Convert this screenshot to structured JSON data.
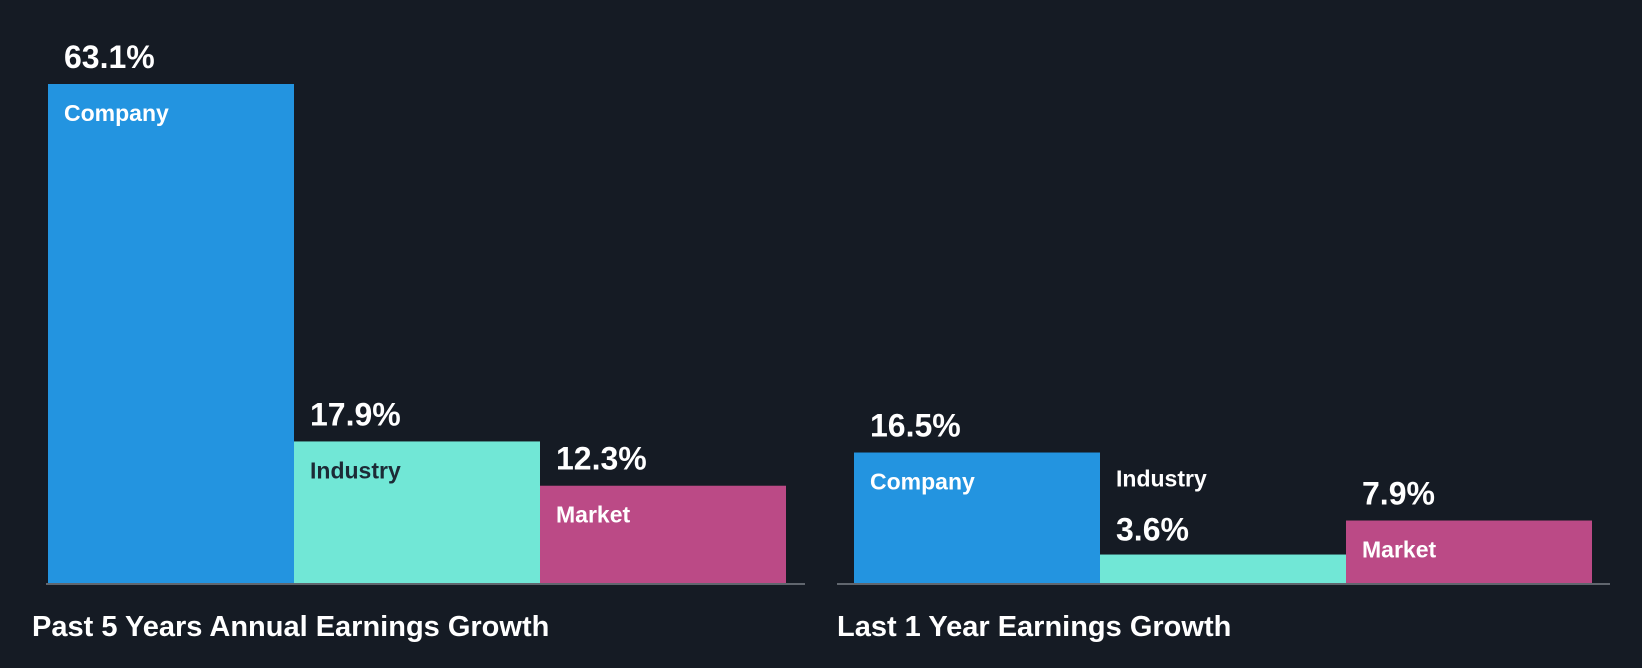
{
  "colors": {
    "background": "#151b24",
    "company": "#2394e0",
    "industry": "#71e7d6",
    "market": "#bb4a86",
    "axis": "#7a7f86",
    "label_on_dark_bar": "#ffffff",
    "label_on_light_bar": "#1c2a36"
  },
  "chart_data": [
    {
      "type": "bar",
      "title": "Past 5 Years Annual Earnings Growth",
      "categories": [
        "Company",
        "Industry",
        "Market"
      ],
      "values": [
        63.1,
        17.9,
        12.3
      ],
      "value_labels": [
        "63.1%",
        "17.9%",
        "12.3%"
      ],
      "ylim": [
        0,
        63.1
      ],
      "grid": false,
      "legend": "none"
    },
    {
      "type": "bar",
      "title": "Last 1 Year Earnings Growth",
      "categories": [
        "Company",
        "Industry",
        "Market"
      ],
      "values": [
        16.5,
        3.6,
        7.9
      ],
      "value_labels": [
        "16.5%",
        "3.6%",
        "7.9%"
      ],
      "ylim": [
        0,
        63.1
      ],
      "grid": false,
      "legend": "none"
    }
  ]
}
